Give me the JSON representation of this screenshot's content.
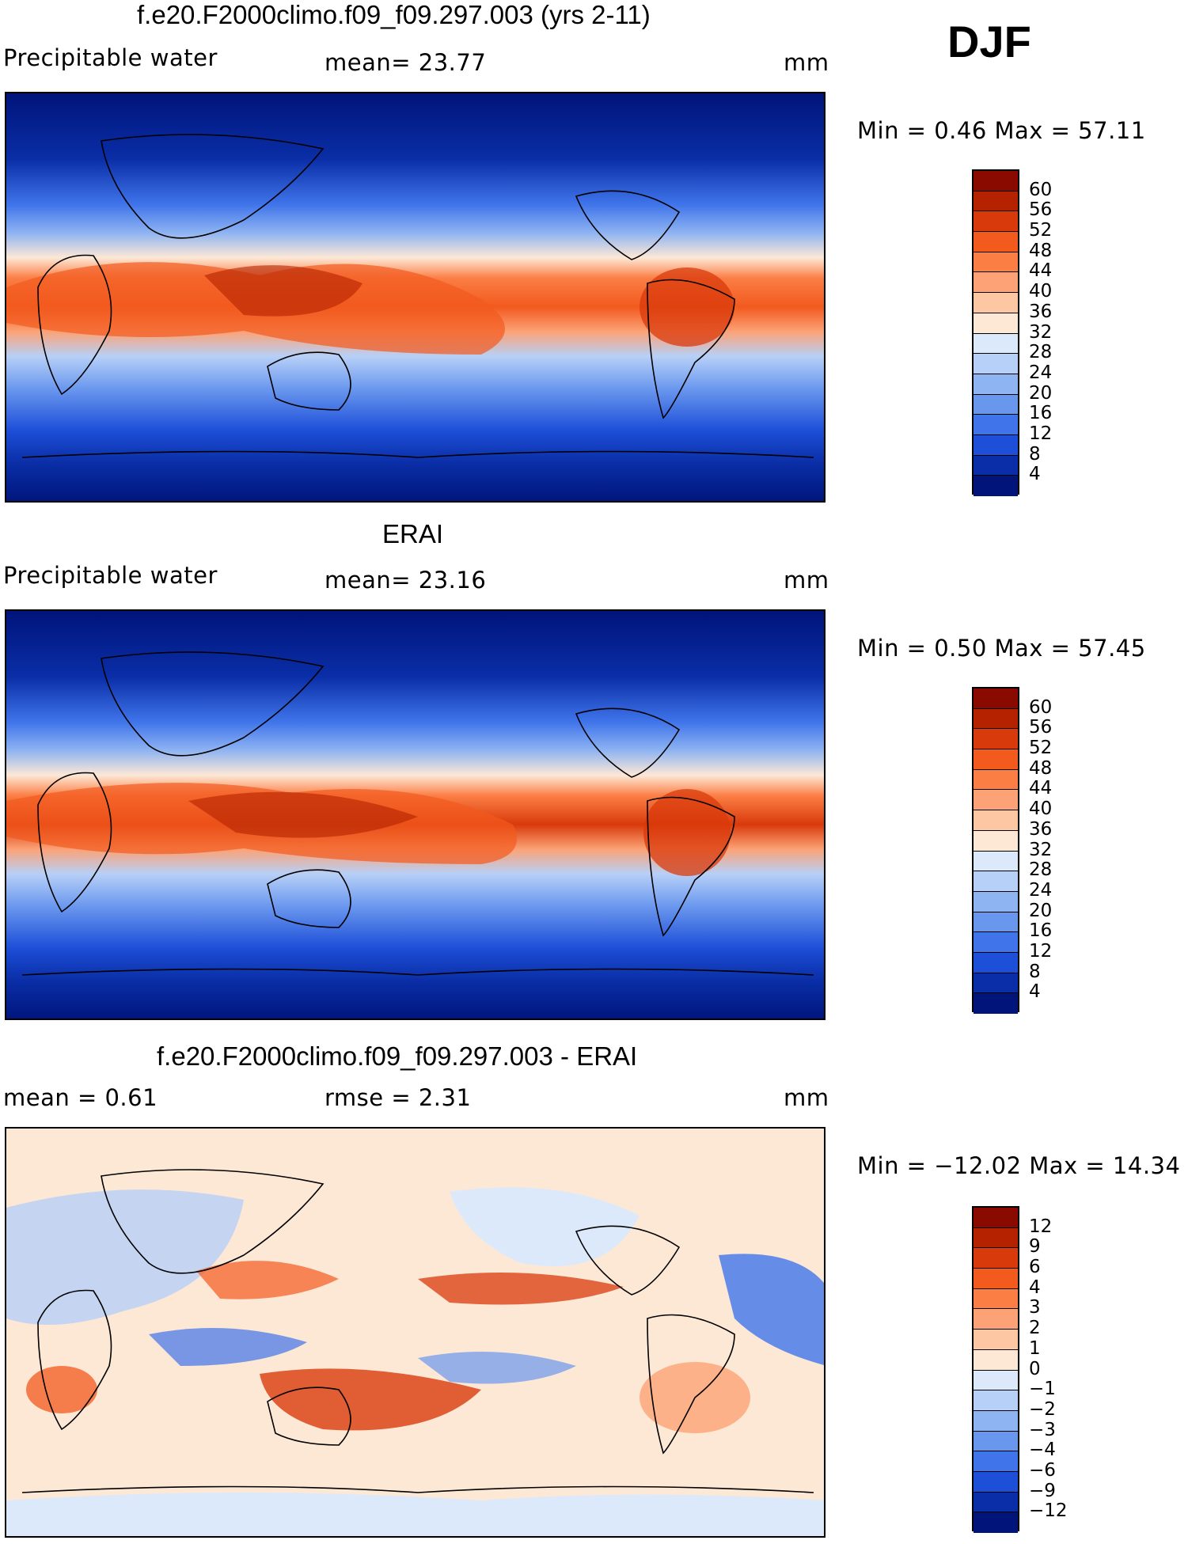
{
  "season": "DJF",
  "panels": [
    {
      "id": "model",
      "title": "f.e20.F2000climo.f09_f09.297.003 (yrs 2-11)",
      "left_label": "Precipitable water",
      "mid_label": "mean=   23.77",
      "unit": "mm",
      "min_max": "Min =     0.46  Max =    57.11"
    },
    {
      "id": "obs",
      "title": "ERAI",
      "left_label": "Precipitable water",
      "mid_label": "mean=   23.16",
      "unit": "mm",
      "min_max": "Min =     0.50  Max =    57.45"
    },
    {
      "id": "diff",
      "title": "f.e20.F2000climo.f09_f09.297.003 - ERAI",
      "left_label": "mean  =     0.61",
      "mid_label": "rmse  =     2.31",
      "unit": "mm",
      "min_max": "Min =  −12.02  Max =    14.34"
    }
  ],
  "colorbars": {
    "abs": {
      "labels": [
        "60",
        "56",
        "52",
        "48",
        "44",
        "40",
        "36",
        "32",
        "28",
        "24",
        "20",
        "16",
        "12",
        "8",
        "4"
      ],
      "colors": [
        "#8b0a00",
        "#b42200",
        "#d93a0b",
        "#f25a1e",
        "#fb7e45",
        "#fca276",
        "#fdc7a4",
        "#fde8d6",
        "#dbe9fb",
        "#b7d0f7",
        "#8fb4f2",
        "#6a97ee",
        "#3f74ea",
        "#1d4fd8",
        "#0a2ea7",
        "#00147a"
      ]
    },
    "diff": {
      "labels": [
        "12",
        "9",
        "6",
        "4",
        "3",
        "2",
        "1",
        "0",
        "−1",
        "−2",
        "−3",
        "−4",
        "−6",
        "−9",
        "−12"
      ],
      "colors": [
        "#8b0a00",
        "#b42200",
        "#d93a0b",
        "#f25a1e",
        "#fb7e45",
        "#fca276",
        "#fdc7a4",
        "#fde8d6",
        "#dbe9fb",
        "#b7d0f7",
        "#8fb4f2",
        "#6a97ee",
        "#3f74ea",
        "#1d4fd8",
        "#0a2ea7",
        "#00147a"
      ]
    }
  },
  "chart_data": [
    {
      "type": "heatmap",
      "title": "f.e20.F2000climo.f09_f09.297.003 (yrs 2-11)",
      "variable": "Precipitable water",
      "units": "mm",
      "mean": 23.77,
      "min": 0.46,
      "max": 57.11,
      "contour_levels": [
        4,
        8,
        12,
        16,
        20,
        24,
        28,
        32,
        36,
        40,
        44,
        48,
        52,
        56,
        60
      ],
      "projection": "global cylindrical equidistant"
    },
    {
      "type": "heatmap",
      "title": "ERAI",
      "variable": "Precipitable water",
      "units": "mm",
      "mean": 23.16,
      "min": 0.5,
      "max": 57.45,
      "contour_levels": [
        4,
        8,
        12,
        16,
        20,
        24,
        28,
        32,
        36,
        40,
        44,
        48,
        52,
        56,
        60
      ],
      "projection": "global cylindrical equidistant"
    },
    {
      "type": "heatmap",
      "title": "f.e20.F2000climo.f09_f09.297.003 - ERAI",
      "units": "mm",
      "mean": 0.61,
      "rmse": 2.31,
      "min": -12.02,
      "max": 14.34,
      "contour_levels": [
        -12,
        -9,
        -6,
        -4,
        -3,
        -2,
        -1,
        0,
        1,
        2,
        3,
        4,
        6,
        9,
        12
      ],
      "projection": "global cylindrical equidistant"
    }
  ]
}
